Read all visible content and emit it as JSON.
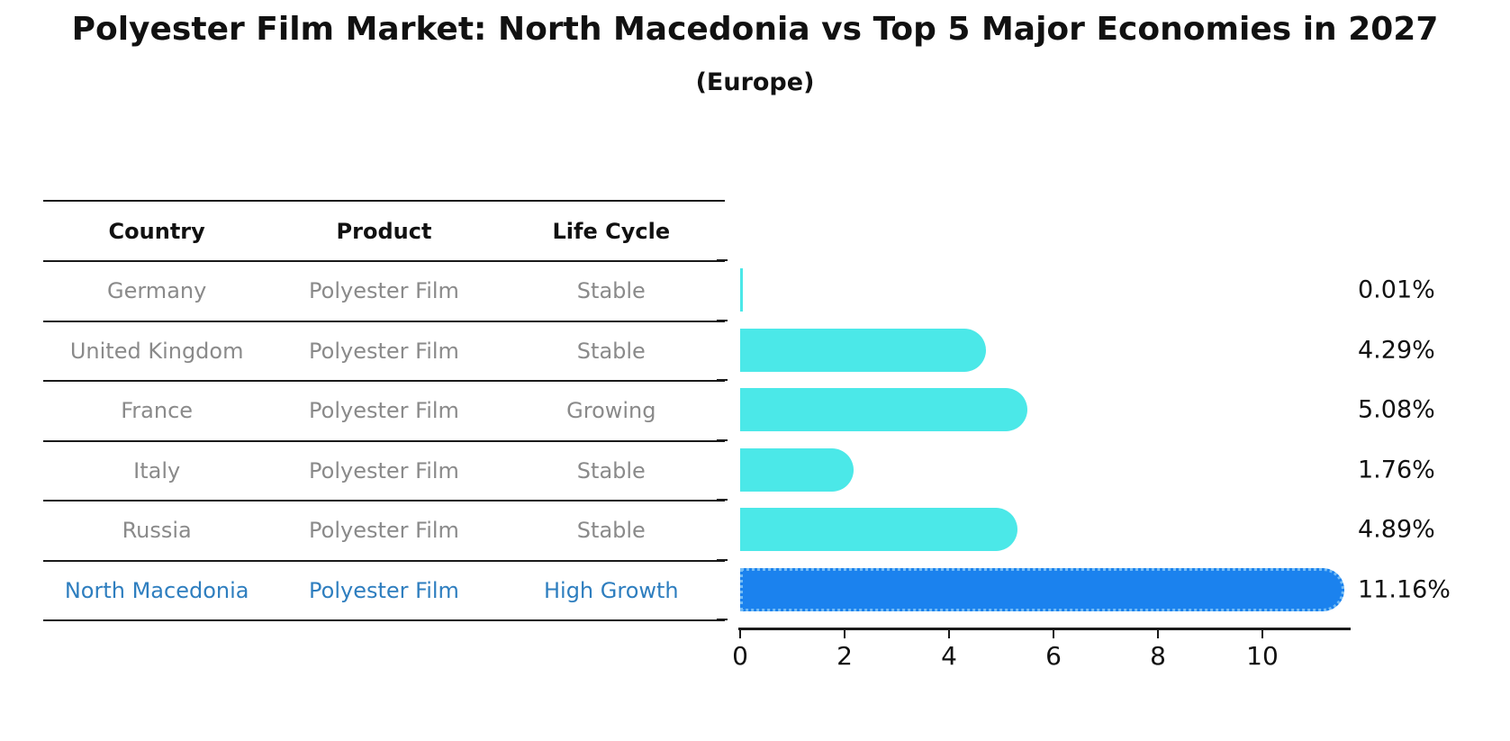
{
  "header": {
    "title": "Polyester Film Market: North Macedonia vs Top 5 Major Economies in 2027",
    "subtitle": "(Europe)"
  },
  "table": {
    "columns": [
      "Country",
      "Product",
      "Life Cycle"
    ],
    "rows": [
      {
        "country": "Germany",
        "product": "Polyester Film",
        "life_cycle": "Stable",
        "highlight": false
      },
      {
        "country": "United Kingdom",
        "product": "Polyester Film",
        "life_cycle": "Stable",
        "highlight": false
      },
      {
        "country": "France",
        "product": "Polyester Film",
        "life_cycle": "Growing",
        "highlight": false
      },
      {
        "country": "Italy",
        "product": "Polyester Film",
        "life_cycle": "Stable",
        "highlight": false
      },
      {
        "country": "Russia",
        "product": "Polyester Film",
        "life_cycle": "Stable",
        "highlight": false
      },
      {
        "country": "North Macedonia",
        "product": "Polyester Film",
        "life_cycle": "High Growth",
        "highlight": true
      }
    ]
  },
  "chart_data": {
    "type": "bar",
    "orientation": "horizontal",
    "title": "Polyester Film Market: North Macedonia vs Top 5 Major Economies in 2027",
    "subtitle": "(Europe)",
    "categories": [
      "Germany",
      "United Kingdom",
      "France",
      "Italy",
      "Russia",
      "North Macedonia"
    ],
    "values": [
      0.01,
      4.29,
      5.08,
      1.76,
      4.89,
      11.16
    ],
    "value_labels": [
      "0.01%",
      "4.29%",
      "5.08%",
      "1.76%",
      "4.89%",
      "11.16%"
    ],
    "x_ticks": [
      0,
      2,
      4,
      6,
      8,
      10
    ],
    "xlim": [
      0,
      11.7
    ],
    "grid": false,
    "legend": false,
    "bar_color_default": "#4be8e8",
    "bar_color_highlight": "#1b82ee",
    "highlight_border_color": "#74bcf5",
    "highlight_index": 5,
    "axis_color": "#1a1a1a",
    "row_text_color": "#8a8a8a",
    "highlight_text_color": "#2e7ebf"
  }
}
